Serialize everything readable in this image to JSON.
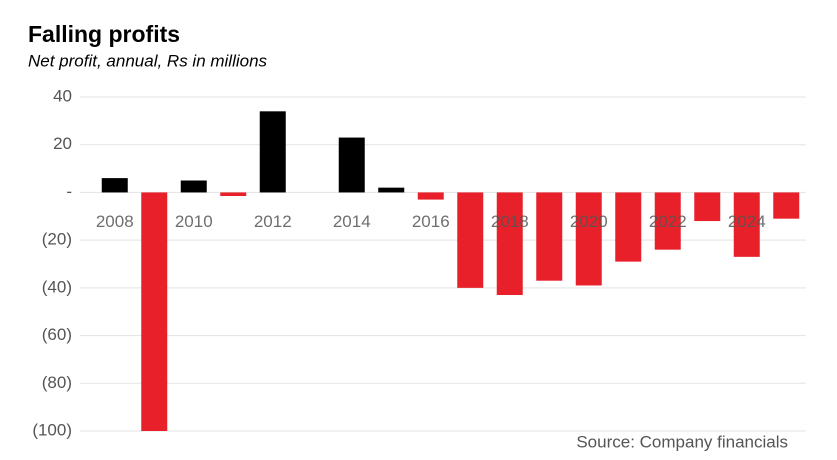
{
  "chart_data": {
    "type": "bar",
    "title": "Falling profits",
    "subtitle": "Net profit, annual, Rs in millions",
    "source": "Source: Company financials",
    "categories": [
      "2008",
      null,
      "2010",
      null,
      "2012",
      null,
      "2014",
      null,
      "2016",
      null,
      "2018",
      null,
      "2020",
      null,
      "2022",
      null,
      "2024",
      null
    ],
    "values": [
      6,
      -100,
      5,
      -1.5,
      34,
      0,
      23,
      2,
      -3,
      -40,
      -43,
      -37,
      -39,
      -29,
      -24,
      -12,
      -27,
      -11
    ],
    "positive_color": "#000000",
    "negative_color": "#e8202a",
    "ylim": [
      -100,
      40
    ],
    "yticks": [
      40,
      20,
      {
        "value": 0,
        "label": "-"
      },
      {
        "value": -20,
        "label": "(20)"
      },
      {
        "value": -40,
        "label": "(40)"
      },
      {
        "value": -60,
        "label": "(60)"
      },
      {
        "value": -80,
        "label": "(80)"
      },
      {
        "value": -100,
        "label": "(100)"
      }
    ],
    "grid": true
  }
}
